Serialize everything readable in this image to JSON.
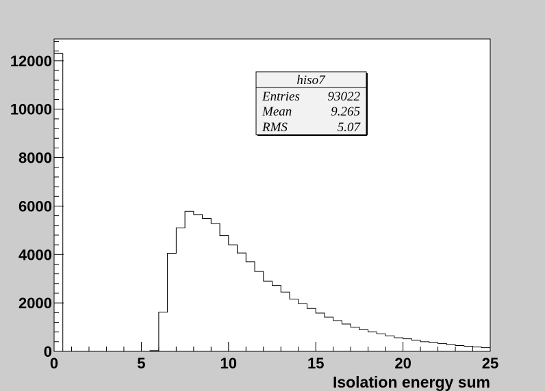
{
  "chart_data": {
    "type": "bar",
    "histogram_name": "hiso7",
    "title": "",
    "xlabel": "Isolation energy sum",
    "ylabel": "",
    "xlim": [
      0,
      25
    ],
    "ylim": [
      0,
      12900
    ],
    "grid": false,
    "x_ticks": [
      "0",
      "5",
      "10",
      "15",
      "20",
      "25"
    ],
    "y_ticks": [
      "0",
      "2000",
      "4000",
      "6000",
      "8000",
      "10000",
      "12000"
    ],
    "bin_width": 0.5,
    "bin_edges_start": 0,
    "values": [
      12300,
      0,
      0,
      0,
      0,
      0,
      0,
      0,
      0,
      0,
      0,
      30,
      1620,
      4050,
      5100,
      5780,
      5650,
      5490,
      5280,
      4780,
      4400,
      4060,
      3700,
      3300,
      2900,
      2720,
      2450,
      2160,
      1970,
      1770,
      1580,
      1410,
      1270,
      1130,
      1000,
      890,
      800,
      720,
      640,
      560,
      520,
      460,
      400,
      360,
      320,
      280,
      240,
      210,
      180,
      150
    ],
    "stats": {
      "title": "hiso7",
      "rows": [
        {
          "label": "Entries",
          "value": "93022"
        },
        {
          "label": "Mean",
          "value": "9.265"
        },
        {
          "label": "RMS",
          "value": "5.07"
        }
      ]
    },
    "colors": {
      "canvas": "#cccccc",
      "frame_fill": "#ffffff",
      "line": "#000000",
      "stats_fill": "#f2f2f2"
    }
  }
}
